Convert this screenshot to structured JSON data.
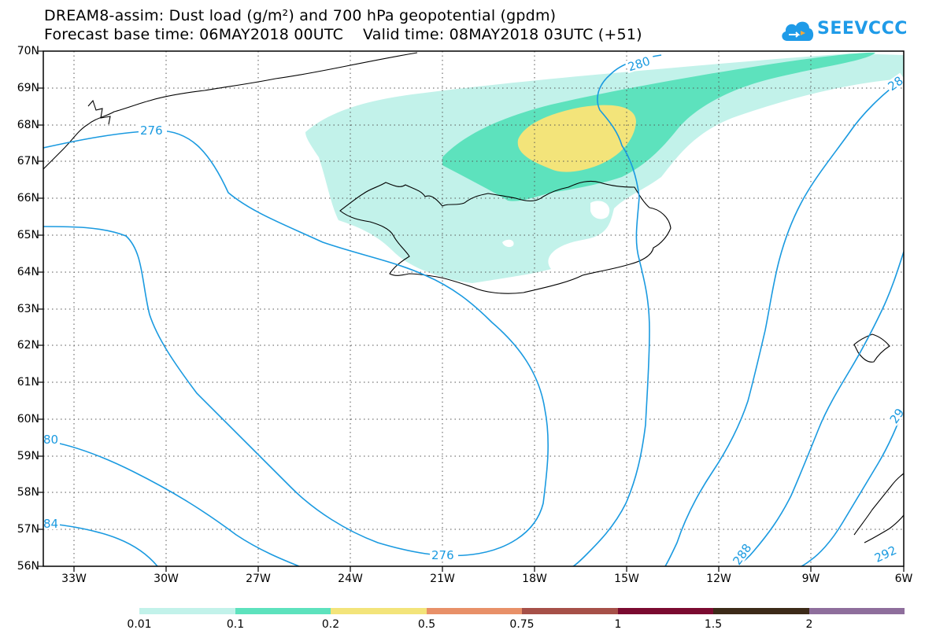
{
  "header": {
    "title_line1": "DREAM8-assim: Dust load (g/m²) and 700 hPa geopotential (gpdm)",
    "title_line2": "Forecast base time: 06MAY2018 00UTC    Valid time: 08MAY2018 03UTC (+51)"
  },
  "logo": {
    "text": "SEEVCCC",
    "icon": "cloud-icon",
    "color": "#1f9be8"
  },
  "map": {
    "lat_labels": [
      "70N",
      "69N",
      "68N",
      "67N",
      "66N",
      "65N",
      "64N",
      "63N",
      "62N",
      "61N",
      "60N",
      "59N",
      "58N",
      "57N",
      "56N"
    ],
    "lon_labels": [
      "33W",
      "30W",
      "27W",
      "24W",
      "21W",
      "18W",
      "15W",
      "12W",
      "9W",
      "6W"
    ],
    "contour_labels": {
      "c276a": "276",
      "c276b": "276",
      "c280top": "280",
      "c28right": "28",
      "c29right": "29",
      "c280left": "80",
      "c284left": "84",
      "c288": "288",
      "c292": "292"
    },
    "contour_color": "#1a9ae0",
    "coast_color": "#000000"
  },
  "colorbar": {
    "colors": [
      "#c2f2ea",
      "#5de2bd",
      "#f3e47a",
      "#e89068",
      "#a65048",
      "#7a0a30",
      "#3c2a18",
      "#8e6e9c"
    ],
    "labels": [
      "0.01",
      "0.1",
      "0.2",
      "0.5",
      "0.75",
      "1",
      "1.5",
      "2"
    ]
  }
}
